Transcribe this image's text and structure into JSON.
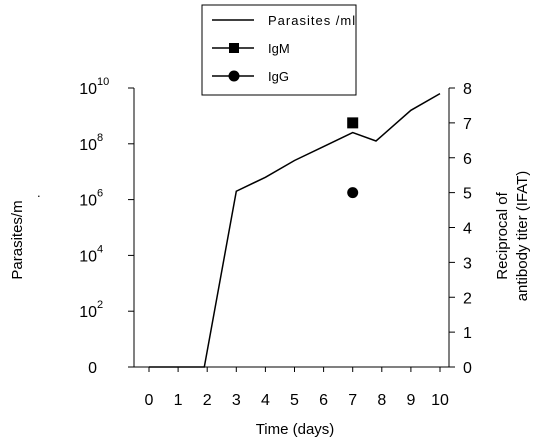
{
  "chart_data": {
    "type": "line",
    "xlabel": "Time (days)",
    "ylabel_left": "Parasites/m",
    "ylabel_right": [
      "Reciprocal of",
      "antibody titer (IFAT)"
    ],
    "x_ticks": [
      "0",
      "1",
      "2",
      "3",
      "4",
      "5",
      "6",
      "7",
      "8",
      "9",
      "10"
    ],
    "y_left_ticks": [
      {
        "base": "0",
        "exp": "",
        "value": 0
      },
      {
        "base": "10",
        "exp": "2",
        "value": 2
      },
      {
        "base": "10",
        "exp": "4",
        "value": 4
      },
      {
        "base": "10",
        "exp": "6",
        "value": 6
      },
      {
        "base": "10",
        "exp": "8",
        "value": 8
      },
      {
        "base": "10",
        "exp": "10",
        "value": 10
      }
    ],
    "y_right_ticks": [
      "0",
      "1",
      "2",
      "3",
      "4",
      "5",
      "6",
      "7",
      "8"
    ],
    "xlim": [
      0,
      10
    ],
    "y_left_lim_log10": [
      0,
      10
    ],
    "y_right_lim": [
      0,
      8
    ],
    "legend_position": "top",
    "series": [
      {
        "name": "Parasites /ml",
        "axis": "left",
        "log10_values": [
          {
            "x": 0,
            "y": 0
          },
          {
            "x": 1,
            "y": 0
          },
          {
            "x": 1.9,
            "y": 0
          },
          {
            "x": 3,
            "y": 6.3
          },
          {
            "x": 4,
            "y": 6.8
          },
          {
            "x": 5,
            "y": 7.4
          },
          {
            "x": 6,
            "y": 7.9
          },
          {
            "x": 7,
            "y": 8.4
          },
          {
            "x": 7.8,
            "y": 8.1
          },
          {
            "x": 9,
            "y": 9.2
          },
          {
            "x": 10,
            "y": 9.8
          }
        ]
      },
      {
        "name": "IgM",
        "axis": "right",
        "marker": "square",
        "points": [
          {
            "x": 7,
            "y": 7
          }
        ]
      },
      {
        "name": "IgG",
        "axis": "right",
        "marker": "circle",
        "points": [
          {
            "x": 7,
            "y": 5
          }
        ]
      }
    ]
  }
}
